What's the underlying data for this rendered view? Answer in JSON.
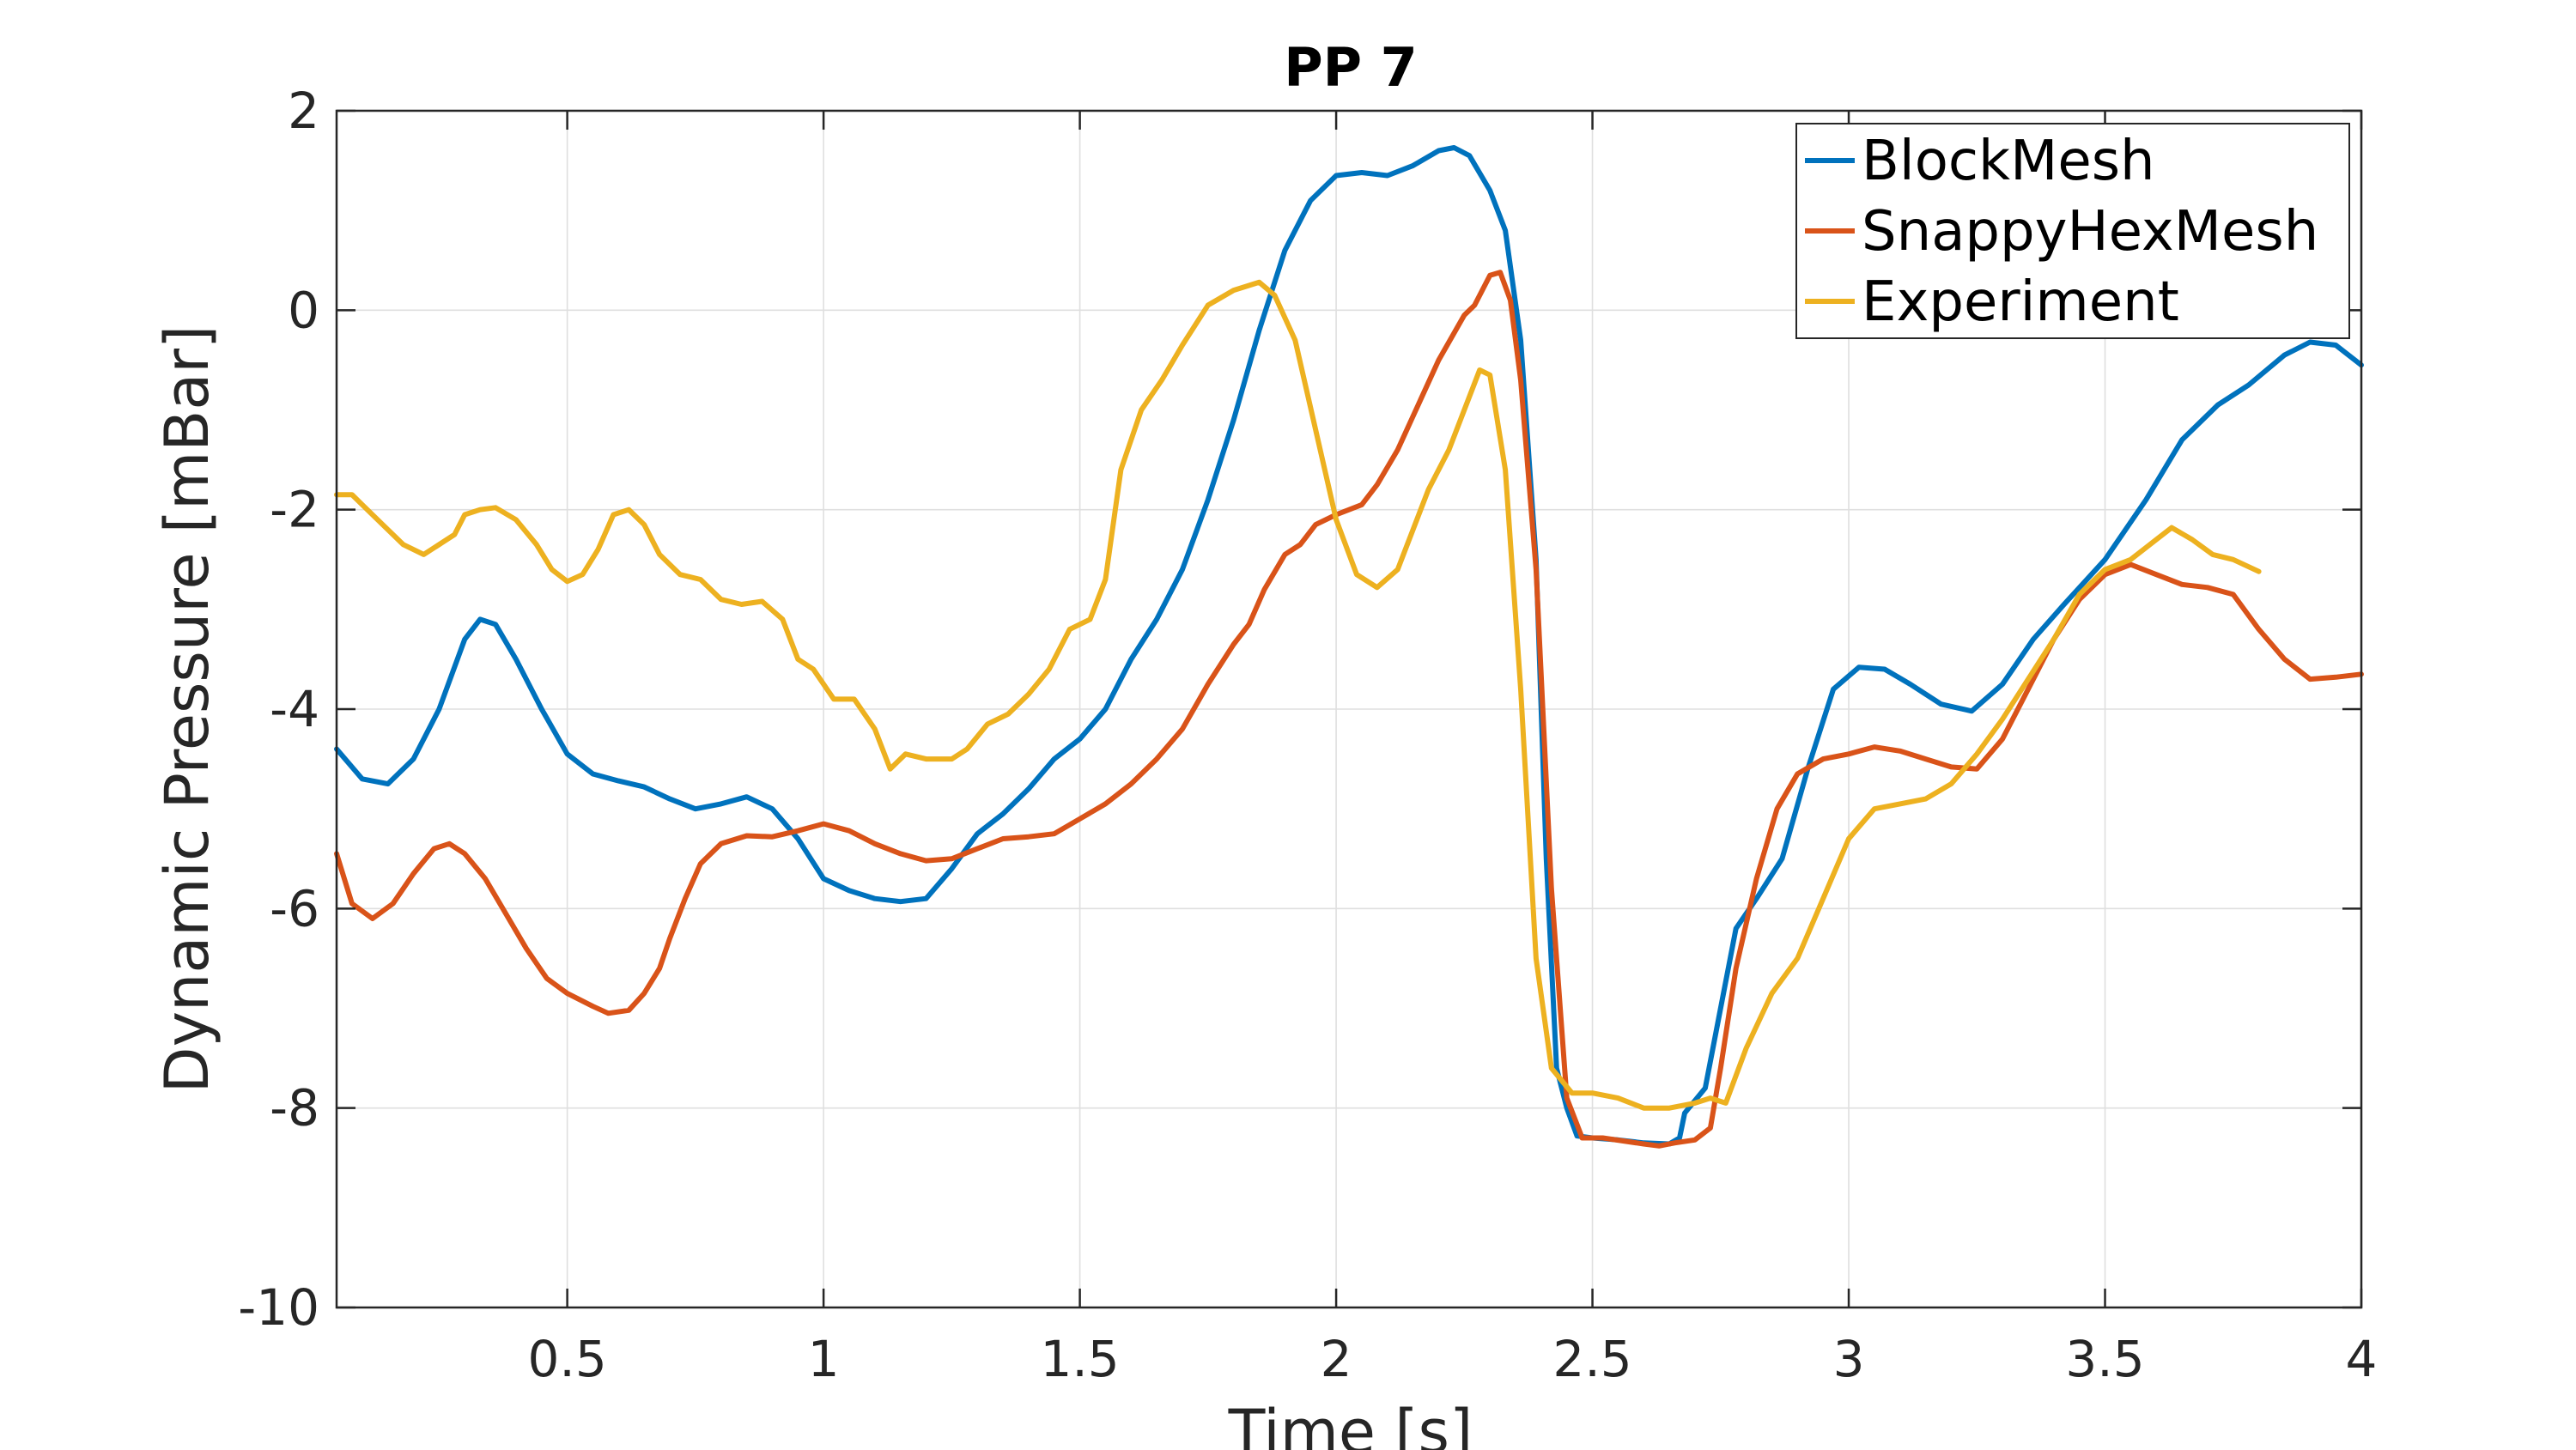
{
  "chart_data": {
    "type": "line",
    "title": "PP 7",
    "xlabel": "Time [s]",
    "ylabel": "Dynamic Pressure [mBar]",
    "xlim": [
      0.05,
      4
    ],
    "ylim": [
      -10,
      2
    ],
    "xticks": [
      0.5,
      1,
      1.5,
      2,
      2.5,
      3,
      3.5,
      4
    ],
    "xtick_labels": [
      "0.5",
      "1",
      "1.5",
      "2",
      "2.5",
      "3",
      "3.5",
      "4"
    ],
    "yticks": [
      -10,
      -8,
      -6,
      -4,
      -2,
      0,
      2
    ],
    "ytick_labels": [
      "-10",
      "-8",
      "-6",
      "-4",
      "-2",
      "0",
      "2"
    ],
    "grid": true,
    "legend_position": "top-right",
    "series": [
      {
        "name": "BlockMesh",
        "color": "#0072BD",
        "points": [
          [
            0.05,
            -4.4
          ],
          [
            0.1,
            -4.7
          ],
          [
            0.15,
            -4.75
          ],
          [
            0.2,
            -4.5
          ],
          [
            0.25,
            -4.0
          ],
          [
            0.3,
            -3.3
          ],
          [
            0.33,
            -3.1
          ],
          [
            0.36,
            -3.15
          ],
          [
            0.4,
            -3.5
          ],
          [
            0.45,
            -4.0
          ],
          [
            0.5,
            -4.45
          ],
          [
            0.55,
            -4.65
          ],
          [
            0.6,
            -4.72
          ],
          [
            0.65,
            -4.78
          ],
          [
            0.7,
            -4.9
          ],
          [
            0.75,
            -5.0
          ],
          [
            0.8,
            -4.95
          ],
          [
            0.85,
            -4.88
          ],
          [
            0.9,
            -5.0
          ],
          [
            0.95,
            -5.3
          ],
          [
            1.0,
            -5.7
          ],
          [
            1.05,
            -5.82
          ],
          [
            1.1,
            -5.9
          ],
          [
            1.15,
            -5.93
          ],
          [
            1.2,
            -5.9
          ],
          [
            1.25,
            -5.6
          ],
          [
            1.3,
            -5.25
          ],
          [
            1.35,
            -5.05
          ],
          [
            1.4,
            -4.8
          ],
          [
            1.45,
            -4.5
          ],
          [
            1.5,
            -4.3
          ],
          [
            1.55,
            -4.0
          ],
          [
            1.6,
            -3.5
          ],
          [
            1.65,
            -3.1
          ],
          [
            1.7,
            -2.6
          ],
          [
            1.75,
            -1.9
          ],
          [
            1.8,
            -1.1
          ],
          [
            1.85,
            -0.2
          ],
          [
            1.9,
            0.6
          ],
          [
            1.95,
            1.1
          ],
          [
            2.0,
            1.35
          ],
          [
            2.05,
            1.38
          ],
          [
            2.1,
            1.35
          ],
          [
            2.15,
            1.45
          ],
          [
            2.2,
            1.6
          ],
          [
            2.23,
            1.63
          ],
          [
            2.26,
            1.55
          ],
          [
            2.3,
            1.2
          ],
          [
            2.33,
            0.8
          ],
          [
            2.36,
            -0.3
          ],
          [
            2.39,
            -2.5
          ],
          [
            2.41,
            -5.5
          ],
          [
            2.43,
            -7.6
          ],
          [
            2.45,
            -8.0
          ],
          [
            2.47,
            -8.28
          ],
          [
            2.5,
            -8.3
          ],
          [
            2.55,
            -8.32
          ],
          [
            2.6,
            -8.35
          ],
          [
            2.65,
            -8.36
          ],
          [
            2.67,
            -8.3
          ],
          [
            2.68,
            -8.05
          ],
          [
            2.72,
            -7.8
          ],
          [
            2.75,
            -7.0
          ],
          [
            2.78,
            -6.2
          ],
          [
            2.82,
            -5.9
          ],
          [
            2.87,
            -5.5
          ],
          [
            2.92,
            -4.6
          ],
          [
            2.97,
            -3.8
          ],
          [
            3.02,
            -3.58
          ],
          [
            3.07,
            -3.6
          ],
          [
            3.12,
            -3.75
          ],
          [
            3.18,
            -3.95
          ],
          [
            3.24,
            -4.02
          ],
          [
            3.3,
            -3.75
          ],
          [
            3.36,
            -3.3
          ],
          [
            3.42,
            -2.95
          ],
          [
            3.5,
            -2.5
          ],
          [
            3.58,
            -1.9
          ],
          [
            3.65,
            -1.3
          ],
          [
            3.72,
            -0.95
          ],
          [
            3.78,
            -0.75
          ],
          [
            3.85,
            -0.45
          ],
          [
            3.9,
            -0.32
          ],
          [
            3.95,
            -0.35
          ],
          [
            4.0,
            -0.55
          ]
        ]
      },
      {
        "name": "SnappyHexMesh",
        "color": "#D95319",
        "points": [
          [
            0.05,
            -5.45
          ],
          [
            0.08,
            -5.95
          ],
          [
            0.12,
            -6.1
          ],
          [
            0.16,
            -5.95
          ],
          [
            0.2,
            -5.65
          ],
          [
            0.24,
            -5.4
          ],
          [
            0.27,
            -5.35
          ],
          [
            0.3,
            -5.45
          ],
          [
            0.34,
            -5.7
          ],
          [
            0.38,
            -6.05
          ],
          [
            0.42,
            -6.4
          ],
          [
            0.46,
            -6.7
          ],
          [
            0.5,
            -6.85
          ],
          [
            0.55,
            -6.98
          ],
          [
            0.58,
            -7.05
          ],
          [
            0.62,
            -7.02
          ],
          [
            0.65,
            -6.85
          ],
          [
            0.68,
            -6.6
          ],
          [
            0.7,
            -6.3
          ],
          [
            0.73,
            -5.9
          ],
          [
            0.76,
            -5.55
          ],
          [
            0.8,
            -5.35
          ],
          [
            0.85,
            -5.27
          ],
          [
            0.9,
            -5.28
          ],
          [
            0.95,
            -5.22
          ],
          [
            1.0,
            -5.15
          ],
          [
            1.05,
            -5.22
          ],
          [
            1.1,
            -5.35
          ],
          [
            1.15,
            -5.45
          ],
          [
            1.2,
            -5.52
          ],
          [
            1.25,
            -5.5
          ],
          [
            1.3,
            -5.4
          ],
          [
            1.35,
            -5.3
          ],
          [
            1.4,
            -5.28
          ],
          [
            1.45,
            -5.25
          ],
          [
            1.5,
            -5.1
          ],
          [
            1.55,
            -4.95
          ],
          [
            1.6,
            -4.75
          ],
          [
            1.65,
            -4.5
          ],
          [
            1.7,
            -4.2
          ],
          [
            1.75,
            -3.75
          ],
          [
            1.8,
            -3.35
          ],
          [
            1.83,
            -3.15
          ],
          [
            1.86,
            -2.8
          ],
          [
            1.9,
            -2.45
          ],
          [
            1.93,
            -2.35
          ],
          [
            1.96,
            -2.15
          ],
          [
            2.0,
            -2.05
          ],
          [
            2.05,
            -1.95
          ],
          [
            2.08,
            -1.75
          ],
          [
            2.12,
            -1.4
          ],
          [
            2.16,
            -0.95
          ],
          [
            2.2,
            -0.5
          ],
          [
            2.25,
            -0.05
          ],
          [
            2.27,
            0.05
          ],
          [
            2.3,
            0.35
          ],
          [
            2.32,
            0.38
          ],
          [
            2.34,
            0.1
          ],
          [
            2.36,
            -0.7
          ],
          [
            2.39,
            -2.6
          ],
          [
            2.42,
            -5.8
          ],
          [
            2.45,
            -7.9
          ],
          [
            2.48,
            -8.3
          ],
          [
            2.52,
            -8.3
          ],
          [
            2.56,
            -8.33
          ],
          [
            2.6,
            -8.36
          ],
          [
            2.63,
            -8.38
          ],
          [
            2.66,
            -8.35
          ],
          [
            2.7,
            -8.32
          ],
          [
            2.73,
            -8.2
          ],
          [
            2.75,
            -7.6
          ],
          [
            2.78,
            -6.6
          ],
          [
            2.82,
            -5.7
          ],
          [
            2.86,
            -5.0
          ],
          [
            2.9,
            -4.65
          ],
          [
            2.95,
            -4.5
          ],
          [
            3.0,
            -4.45
          ],
          [
            3.05,
            -4.38
          ],
          [
            3.1,
            -4.42
          ],
          [
            3.15,
            -4.5
          ],
          [
            3.2,
            -4.58
          ],
          [
            3.25,
            -4.6
          ],
          [
            3.3,
            -4.3
          ],
          [
            3.35,
            -3.8
          ],
          [
            3.4,
            -3.3
          ],
          [
            3.45,
            -2.9
          ],
          [
            3.5,
            -2.65
          ],
          [
            3.55,
            -2.55
          ],
          [
            3.6,
            -2.65
          ],
          [
            3.65,
            -2.75
          ],
          [
            3.7,
            -2.78
          ],
          [
            3.75,
            -2.85
          ],
          [
            3.8,
            -3.2
          ],
          [
            3.85,
            -3.5
          ],
          [
            3.9,
            -3.7
          ],
          [
            3.95,
            -3.68
          ],
          [
            4.0,
            -3.65
          ]
        ]
      },
      {
        "name": "Experiment",
        "color": "#EDB120",
        "points": [
          [
            0.05,
            -1.85
          ],
          [
            0.08,
            -1.85
          ],
          [
            0.1,
            -1.95
          ],
          [
            0.14,
            -2.15
          ],
          [
            0.18,
            -2.35
          ],
          [
            0.22,
            -2.45
          ],
          [
            0.25,
            -2.35
          ],
          [
            0.28,
            -2.25
          ],
          [
            0.3,
            -2.05
          ],
          [
            0.33,
            -2.0
          ],
          [
            0.36,
            -1.98
          ],
          [
            0.4,
            -2.1
          ],
          [
            0.44,
            -2.35
          ],
          [
            0.47,
            -2.6
          ],
          [
            0.5,
            -2.72
          ],
          [
            0.53,
            -2.65
          ],
          [
            0.56,
            -2.4
          ],
          [
            0.59,
            -2.05
          ],
          [
            0.62,
            -2.0
          ],
          [
            0.65,
            -2.15
          ],
          [
            0.68,
            -2.45
          ],
          [
            0.72,
            -2.65
          ],
          [
            0.76,
            -2.7
          ],
          [
            0.8,
            -2.9
          ],
          [
            0.84,
            -2.95
          ],
          [
            0.88,
            -2.92
          ],
          [
            0.92,
            -3.1
          ],
          [
            0.95,
            -3.5
          ],
          [
            0.98,
            -3.6
          ],
          [
            1.02,
            -3.9
          ],
          [
            1.06,
            -3.9
          ],
          [
            1.1,
            -4.2
          ],
          [
            1.13,
            -4.6
          ],
          [
            1.16,
            -4.45
          ],
          [
            1.2,
            -4.5
          ],
          [
            1.25,
            -4.5
          ],
          [
            1.28,
            -4.4
          ],
          [
            1.32,
            -4.15
          ],
          [
            1.36,
            -4.05
          ],
          [
            1.4,
            -3.85
          ],
          [
            1.44,
            -3.6
          ],
          [
            1.48,
            -3.2
          ],
          [
            1.52,
            -3.1
          ],
          [
            1.55,
            -2.7
          ],
          [
            1.58,
            -1.6
          ],
          [
            1.62,
            -1.0
          ],
          [
            1.66,
            -0.7
          ],
          [
            1.7,
            -0.35
          ],
          [
            1.75,
            0.05
          ],
          [
            1.8,
            0.2
          ],
          [
            1.85,
            0.28
          ],
          [
            1.88,
            0.15
          ],
          [
            1.92,
            -0.3
          ],
          [
            1.96,
            -1.2
          ],
          [
            2.0,
            -2.1
          ],
          [
            2.04,
            -2.65
          ],
          [
            2.08,
            -2.78
          ],
          [
            2.12,
            -2.6
          ],
          [
            2.15,
            -2.2
          ],
          [
            2.18,
            -1.8
          ],
          [
            2.22,
            -1.4
          ],
          [
            2.25,
            -1.0
          ],
          [
            2.28,
            -0.6
          ],
          [
            2.3,
            -0.65
          ],
          [
            2.33,
            -1.6
          ],
          [
            2.36,
            -3.8
          ],
          [
            2.39,
            -6.5
          ],
          [
            2.42,
            -7.6
          ],
          [
            2.46,
            -7.85
          ],
          [
            2.5,
            -7.85
          ],
          [
            2.55,
            -7.9
          ],
          [
            2.6,
            -8.0
          ],
          [
            2.65,
            -8.0
          ],
          [
            2.7,
            -7.95
          ],
          [
            2.73,
            -7.9
          ],
          [
            2.76,
            -7.95
          ],
          [
            2.8,
            -7.4
          ],
          [
            2.85,
            -6.85
          ],
          [
            2.9,
            -6.5
          ],
          [
            2.95,
            -5.9
          ],
          [
            3.0,
            -5.3
          ],
          [
            3.05,
            -5.0
          ],
          [
            3.1,
            -4.95
          ],
          [
            3.15,
            -4.9
          ],
          [
            3.2,
            -4.75
          ],
          [
            3.25,
            -4.45
          ],
          [
            3.3,
            -4.1
          ],
          [
            3.35,
            -3.7
          ],
          [
            3.4,
            -3.3
          ],
          [
            3.45,
            -2.85
          ],
          [
            3.5,
            -2.6
          ],
          [
            3.55,
            -2.5
          ],
          [
            3.6,
            -2.3
          ],
          [
            3.63,
            -2.18
          ],
          [
            3.67,
            -2.3
          ],
          [
            3.71,
            -2.45
          ],
          [
            3.75,
            -2.5
          ],
          [
            3.8,
            -2.62
          ]
        ]
      }
    ]
  }
}
